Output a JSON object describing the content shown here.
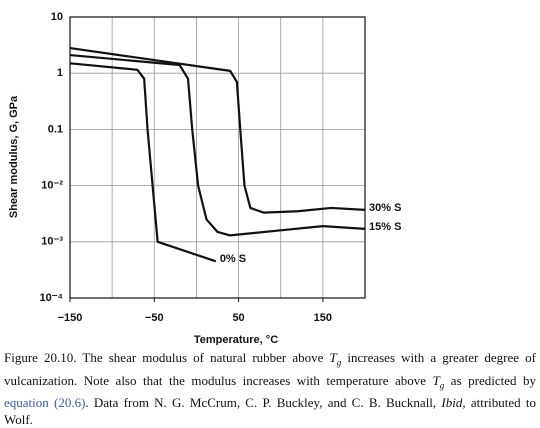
{
  "chart_data": {
    "type": "line",
    "xlabel": "Temperature, °C",
    "ylabel": "Shear modulus, G, GPa",
    "xlim": [
      -150,
      200
    ],
    "xticks": [
      {
        "value": -150,
        "label": "−150"
      },
      {
        "value": -50,
        "label": "−50"
      },
      50,
      150
    ],
    "xgrid": [
      -150,
      -100,
      -50,
      0,
      50,
      100,
      150
    ],
    "ylim": [
      0.0001,
      10
    ],
    "yticks": [
      {
        "value": 0.0001,
        "label": "10⁻⁴"
      },
      {
        "value": 0.001,
        "label": "10⁻³"
      },
      {
        "value": 0.01,
        "label": "10⁻²"
      },
      0.1,
      1,
      10
    ],
    "log_y": true,
    "grid": true,
    "series": [
      {
        "name": "0% S",
        "color": "#111111",
        "x": [
          -150,
          -70,
          -62,
          -58,
          -52,
          -46,
          23
        ],
        "values": [
          1.5,
          1.15,
          0.8,
          0.1,
          0.01,
          0.001,
          0.00045
        ]
      },
      {
        "name": "15% S",
        "color": "#111111",
        "x": [
          -150,
          -20,
          -10,
          -5,
          2,
          12,
          25,
          40,
          100,
          150,
          200
        ],
        "values": [
          2.1,
          1.4,
          0.8,
          0.1,
          0.01,
          0.0025,
          0.0015,
          0.0013,
          0.0016,
          0.0019,
          0.0017
        ]
      },
      {
        "name": "30% S",
        "color": "#111111",
        "x": [
          -150,
          40,
          48,
          52,
          57,
          64,
          80,
          120,
          160,
          200
        ],
        "values": [
          2.8,
          1.1,
          0.7,
          0.1,
          0.01,
          0.004,
          0.0033,
          0.0035,
          0.004,
          0.0037
        ]
      }
    ]
  },
  "caption": [
    "Figure 20.10. The shear modulus of natural rubber above ",
    "T",
    "g",
    " increases with a greater degree of vulcanization. Note also that the modulus increases with temperature above ",
    "T",
    "g",
    " as predicted by ",
    "equation (20.6)",
    ". Data from N. G. McCrum, C. P. Buckley, and C. B. Bucknall, ",
    "Ibid",
    ", attributed to Wolf."
  ]
}
